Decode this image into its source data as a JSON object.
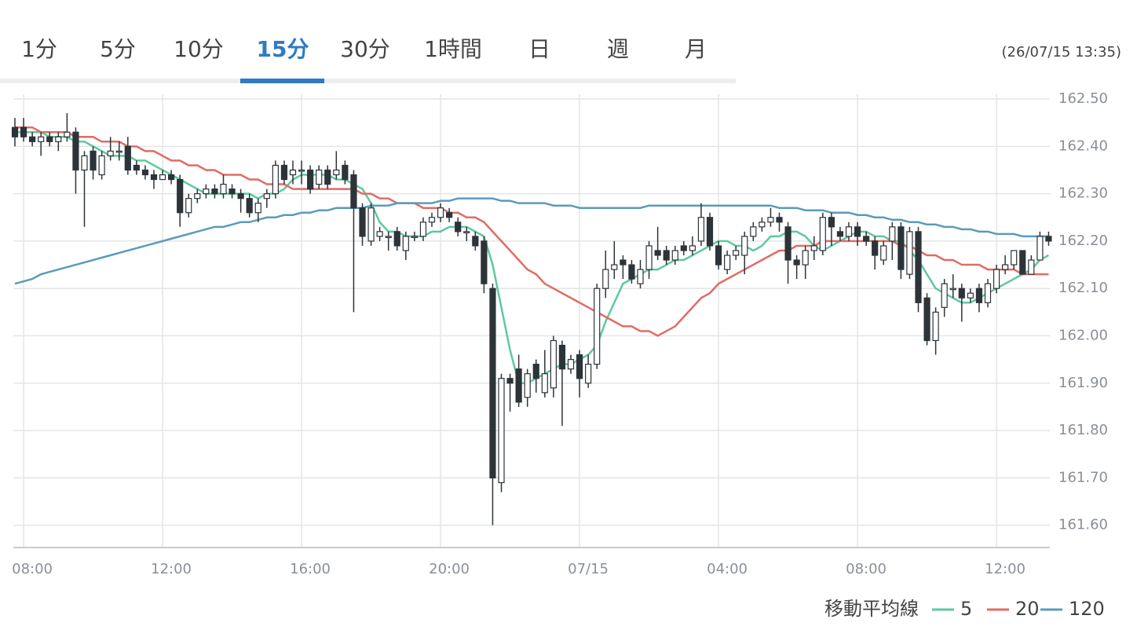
{
  "tabs": [
    {
      "label": "1分"
    },
    {
      "label": "5分"
    },
    {
      "label": "10分"
    },
    {
      "label": "15分",
      "active": true
    },
    {
      "label": "30分"
    },
    {
      "label": "1時間"
    },
    {
      "label": "日"
    },
    {
      "label": "週"
    },
    {
      "label": "月"
    }
  ],
  "timestamp": "(26/07/15 13:35)",
  "chart_data": {
    "type": "candlestick",
    "legend_title": "移動平均線",
    "up_color": "#ffffff",
    "down_color": "#2d3439",
    "edge_color": "#2d3439",
    "grid": true,
    "ylim": [
      161.553,
      162.51
    ],
    "yticks": [
      {
        "value": 161.6,
        "label": "161.60"
      },
      {
        "value": 161.7,
        "label": "161.70"
      },
      {
        "value": 161.8,
        "label": "161.80"
      },
      {
        "value": 161.9,
        "label": "161.90"
      },
      {
        "value": 162.0,
        "label": "162.00"
      },
      {
        "value": 162.1,
        "label": "162.10"
      },
      {
        "value": 162.2,
        "label": "162.20"
      },
      {
        "value": 162.3,
        "label": "162.30"
      },
      {
        "value": 162.4,
        "label": "162.40"
      },
      {
        "value": 162.5,
        "label": "162.50"
      }
    ],
    "categories": [
      null,
      "08:00",
      null,
      null,
      null,
      null,
      null,
      null,
      null,
      null,
      null,
      null,
      null,
      null,
      null,
      null,
      null,
      "12:00",
      null,
      null,
      null,
      null,
      null,
      null,
      null,
      null,
      null,
      null,
      null,
      null,
      null,
      null,
      null,
      "16:00",
      null,
      null,
      null,
      null,
      null,
      null,
      null,
      null,
      null,
      null,
      null,
      null,
      null,
      null,
      null,
      "20:00",
      null,
      null,
      null,
      null,
      null,
      null,
      null,
      null,
      null,
      null,
      null,
      null,
      null,
      null,
      null,
      "07/15",
      null,
      null,
      null,
      null,
      null,
      null,
      null,
      null,
      null,
      null,
      null,
      null,
      null,
      null,
      null,
      "04:00",
      null,
      null,
      null,
      null,
      null,
      null,
      null,
      null,
      null,
      null,
      null,
      null,
      null,
      null,
      null,
      "08:00",
      null,
      null,
      null,
      null,
      null,
      null,
      null,
      null,
      null,
      null,
      null,
      null,
      null,
      null,
      null,
      "12:00",
      null,
      null,
      null,
      null,
      null,
      null
    ],
    "open": [
      162.44,
      162.44,
      162.42,
      162.41,
      162.42,
      162.41,
      162.42,
      162.43,
      162.35,
      162.39,
      162.34,
      162.38,
      162.39,
      162.4,
      162.36,
      162.35,
      162.34,
      162.33,
      162.34,
      162.33,
      162.26,
      162.29,
      162.3,
      162.31,
      162.3,
      162.31,
      162.3,
      162.29,
      162.26,
      162.29,
      162.3,
      162.36,
      162.34,
      162.35,
      162.35,
      162.32,
      162.35,
      162.34,
      162.36,
      162.34,
      162.27,
      162.2,
      162.21,
      162.21,
      162.22,
      162.18,
      162.21,
      162.21,
      162.24,
      162.25,
      162.26,
      162.24,
      162.22,
      162.21,
      162.2,
      162.1,
      161.69,
      161.91,
      161.93,
      161.87,
      161.94,
      161.88,
      161.89,
      161.98,
      161.93,
      161.96,
      161.9,
      161.94,
      162.1,
      162.14,
      162.16,
      162.15,
      162.11,
      162.14,
      162.18,
      162.18,
      162.16,
      162.19,
      162.18,
      162.2,
      162.25,
      162.19,
      162.14,
      162.17,
      162.17,
      162.21,
      162.23,
      162.24,
      162.25,
      162.23,
      162.16,
      162.15,
      162.18,
      162.18,
      162.25,
      162.22,
      162.21,
      162.23,
      162.21,
      162.2,
      162.16,
      162.2,
      162.23,
      162.13,
      162.22,
      162.08,
      161.99,
      162.06,
      162.1,
      162.1,
      162.08,
      162.1,
      162.07,
      162.1,
      162.14,
      162.15,
      162.18,
      162.13,
      162.16,
      162.21
    ],
    "high": [
      162.46,
      162.46,
      162.43,
      162.43,
      162.43,
      162.43,
      162.47,
      162.44,
      162.39,
      162.4,
      162.39,
      162.42,
      162.41,
      162.42,
      162.37,
      162.36,
      162.35,
      162.35,
      162.35,
      162.34,
      162.3,
      162.31,
      162.32,
      162.32,
      162.34,
      162.32,
      162.31,
      162.3,
      162.29,
      162.31,
      162.37,
      162.37,
      162.37,
      162.37,
      162.36,
      162.36,
      162.36,
      162.39,
      162.37,
      162.35,
      162.28,
      162.28,
      162.23,
      162.22,
      162.23,
      162.22,
      162.22,
      162.25,
      162.26,
      162.28,
      162.27,
      162.25,
      162.23,
      162.22,
      162.21,
      162.11,
      161.92,
      161.92,
      161.96,
      161.93,
      161.95,
      161.97,
      162.0,
      161.99,
      161.96,
      161.97,
      161.96,
      162.11,
      162.18,
      162.2,
      162.17,
      162.16,
      162.16,
      162.2,
      162.23,
      162.19,
      162.19,
      162.2,
      162.21,
      162.28,
      162.26,
      162.2,
      162.18,
      162.19,
      162.22,
      162.24,
      162.25,
      162.27,
      162.26,
      162.24,
      162.17,
      162.19,
      162.21,
      162.26,
      162.26,
      162.23,
      162.24,
      162.24,
      162.22,
      162.21,
      162.2,
      162.24,
      162.24,
      162.23,
      162.23,
      162.09,
      162.06,
      162.12,
      162.13,
      162.11,
      162.1,
      162.11,
      162.12,
      162.15,
      162.17,
      162.18,
      162.18,
      162.17,
      162.22,
      162.22
    ],
    "low": [
      162.4,
      162.41,
      162.4,
      162.38,
      162.4,
      162.39,
      162.41,
      162.3,
      162.23,
      162.33,
      162.33,
      162.37,
      162.37,
      162.34,
      162.34,
      162.33,
      162.31,
      162.33,
      162.32,
      162.23,
      162.25,
      162.28,
      162.29,
      162.29,
      162.29,
      162.29,
      162.26,
      162.25,
      162.24,
      162.27,
      162.29,
      162.32,
      162.32,
      162.32,
      162.3,
      162.31,
      162.31,
      162.33,
      162.32,
      162.05,
      162.19,
      162.19,
      162.2,
      162.18,
      162.18,
      162.16,
      162.2,
      162.2,
      162.23,
      162.24,
      162.24,
      162.21,
      162.2,
      162.18,
      162.09,
      161.6,
      161.67,
      161.84,
      161.85,
      161.85,
      161.88,
      161.87,
      161.87,
      161.81,
      161.92,
      161.87,
      161.89,
      161.93,
      162.08,
      162.12,
      162.12,
      162.11,
      162.1,
      162.12,
      162.16,
      162.15,
      162.15,
      162.17,
      162.17,
      162.19,
      162.18,
      162.14,
      162.13,
      162.16,
      162.13,
      162.2,
      162.22,
      162.23,
      162.22,
      162.11,
      162.12,
      162.12,
      162.16,
      162.17,
      162.19,
      162.2,
      162.2,
      162.19,
      162.19,
      162.14,
      162.15,
      162.16,
      162.12,
      162.12,
      162.05,
      161.98,
      161.96,
      162.04,
      162.08,
      162.03,
      162.07,
      162.05,
      162.06,
      162.09,
      162.13,
      162.14,
      162.13,
      162.13,
      162.16,
      162.19
    ],
    "close": [
      162.42,
      162.42,
      162.41,
      162.42,
      162.41,
      162.42,
      162.43,
      162.35,
      162.38,
      162.35,
      162.38,
      162.39,
      162.39,
      162.35,
      162.35,
      162.34,
      162.33,
      162.34,
      162.33,
      162.26,
      162.29,
      162.3,
      162.31,
      162.3,
      162.32,
      162.3,
      162.29,
      162.26,
      162.28,
      162.3,
      162.36,
      162.33,
      162.35,
      162.35,
      162.31,
      162.35,
      162.32,
      162.35,
      162.33,
      162.27,
      162.21,
      162.27,
      162.22,
      162.21,
      162.19,
      162.21,
      162.21,
      162.24,
      162.25,
      162.27,
      162.25,
      162.22,
      162.22,
      162.19,
      162.11,
      161.7,
      161.91,
      161.9,
      161.86,
      161.92,
      161.91,
      161.92,
      161.99,
      161.93,
      161.95,
      161.91,
      161.94,
      162.1,
      162.14,
      162.15,
      162.15,
      162.12,
      162.14,
      162.19,
      162.17,
      162.16,
      162.18,
      162.18,
      162.19,
      162.25,
      162.19,
      162.15,
      162.17,
      162.18,
      162.21,
      162.23,
      162.24,
      162.25,
      162.24,
      162.16,
      162.15,
      162.18,
      162.19,
      162.25,
      162.23,
      162.21,
      162.23,
      162.21,
      162.2,
      162.17,
      162.19,
      162.23,
      162.14,
      162.22,
      162.07,
      161.99,
      162.05,
      162.11,
      162.1,
      162.08,
      162.09,
      162.07,
      162.11,
      162.14,
      162.15,
      162.18,
      162.13,
      162.16,
      162.21,
      162.2
    ],
    "series": [
      {
        "name": "5",
        "color": "#5ec8a0",
        "values": [
          162.43,
          162.43,
          162.43,
          162.43,
          162.42,
          162.42,
          162.42,
          162.41,
          162.41,
          162.4,
          162.39,
          162.38,
          162.38,
          162.38,
          162.37,
          162.37,
          162.36,
          162.35,
          162.34,
          162.33,
          162.32,
          162.31,
          162.3,
          162.3,
          162.3,
          162.3,
          162.3,
          162.3,
          162.29,
          162.3,
          162.3,
          162.31,
          162.33,
          162.34,
          162.34,
          162.34,
          162.34,
          162.33,
          162.33,
          162.32,
          162.31,
          162.28,
          162.24,
          162.22,
          162.22,
          162.21,
          162.21,
          162.21,
          162.22,
          162.22,
          162.23,
          162.23,
          162.23,
          162.22,
          162.21,
          162.15,
          162.06,
          161.97,
          161.9,
          161.9,
          161.91,
          161.92,
          161.93,
          161.94,
          161.94,
          161.95,
          161.96,
          161.98,
          162.03,
          162.07,
          162.11,
          162.12,
          162.13,
          162.14,
          162.14,
          162.15,
          162.16,
          162.16,
          162.17,
          162.18,
          162.19,
          162.2,
          162.2,
          162.19,
          162.19,
          162.18,
          162.19,
          162.21,
          162.21,
          162.22,
          162.22,
          162.21,
          162.19,
          162.18,
          162.19,
          162.2,
          162.21,
          162.22,
          162.22,
          162.21,
          162.21,
          162.2,
          162.2,
          162.18,
          162.16,
          162.13,
          162.1,
          162.09,
          162.08,
          162.07,
          162.07,
          162.08,
          162.09,
          162.1,
          162.11,
          162.12,
          162.13,
          162.14,
          162.16,
          162.17
        ]
      },
      {
        "name": "20",
        "color": "#e06c64",
        "values": [
          162.44,
          162.44,
          162.44,
          162.43,
          162.43,
          162.43,
          162.43,
          162.42,
          162.42,
          162.42,
          162.41,
          162.41,
          162.41,
          162.4,
          162.4,
          162.39,
          162.39,
          162.38,
          162.37,
          162.37,
          162.36,
          162.36,
          162.35,
          162.35,
          162.34,
          162.34,
          162.34,
          162.33,
          162.33,
          162.32,
          162.32,
          162.32,
          162.31,
          162.31,
          162.31,
          162.31,
          162.31,
          162.31,
          162.31,
          162.31,
          162.3,
          162.3,
          162.29,
          162.29,
          162.28,
          162.28,
          162.28,
          162.27,
          162.27,
          162.27,
          162.26,
          162.26,
          162.25,
          162.25,
          162.24,
          162.22,
          162.2,
          162.18,
          162.16,
          162.14,
          162.13,
          162.11,
          162.1,
          162.09,
          162.08,
          162.07,
          162.06,
          162.05,
          162.04,
          162.03,
          162.02,
          162.02,
          162.01,
          162.01,
          162.0,
          162.01,
          162.02,
          162.04,
          162.06,
          162.08,
          162.09,
          162.11,
          162.12,
          162.13,
          162.14,
          162.15,
          162.16,
          162.17,
          162.18,
          162.18,
          162.19,
          162.19,
          162.19,
          162.2,
          162.2,
          162.2,
          162.2,
          162.2,
          162.2,
          162.2,
          162.2,
          162.2,
          162.19,
          162.19,
          162.18,
          162.17,
          162.17,
          162.16,
          162.16,
          162.15,
          162.15,
          162.15,
          162.14,
          162.14,
          162.14,
          162.14,
          162.13,
          162.13,
          162.13,
          162.13
        ]
      },
      {
        "name": "120",
        "color": "#5b9bbb",
        "values": [
          162.11,
          162.115,
          162.12,
          162.13,
          162.135,
          162.14,
          162.145,
          162.15,
          162.155,
          162.16,
          162.165,
          162.17,
          162.175,
          162.18,
          162.185,
          162.19,
          162.195,
          162.2,
          162.205,
          162.21,
          162.215,
          162.22,
          162.225,
          162.23,
          162.23,
          162.235,
          162.24,
          162.24,
          162.245,
          162.25,
          162.25,
          162.255,
          162.255,
          162.26,
          162.26,
          162.265,
          162.265,
          162.27,
          162.27,
          162.27,
          162.27,
          162.275,
          162.275,
          162.275,
          162.28,
          162.28,
          162.28,
          162.28,
          162.28,
          162.285,
          162.285,
          162.29,
          162.29,
          162.29,
          162.29,
          162.29,
          162.285,
          162.285,
          162.28,
          162.28,
          162.28,
          162.28,
          162.275,
          162.275,
          162.275,
          162.27,
          162.27,
          162.27,
          162.27,
          162.27,
          162.27,
          162.27,
          162.27,
          162.275,
          162.275,
          162.275,
          162.275,
          162.275,
          162.275,
          162.275,
          162.275,
          162.275,
          162.275,
          162.275,
          162.275,
          162.275,
          162.275,
          162.275,
          162.27,
          162.27,
          162.27,
          162.265,
          162.265,
          162.265,
          162.26,
          162.26,
          162.26,
          162.255,
          162.255,
          162.25,
          162.25,
          162.245,
          162.245,
          162.24,
          162.24,
          162.235,
          162.235,
          162.23,
          162.23,
          162.225,
          162.225,
          162.22,
          162.22,
          162.215,
          162.215,
          162.215,
          162.21,
          162.21,
          162.21,
          162.21
        ]
      }
    ]
  }
}
